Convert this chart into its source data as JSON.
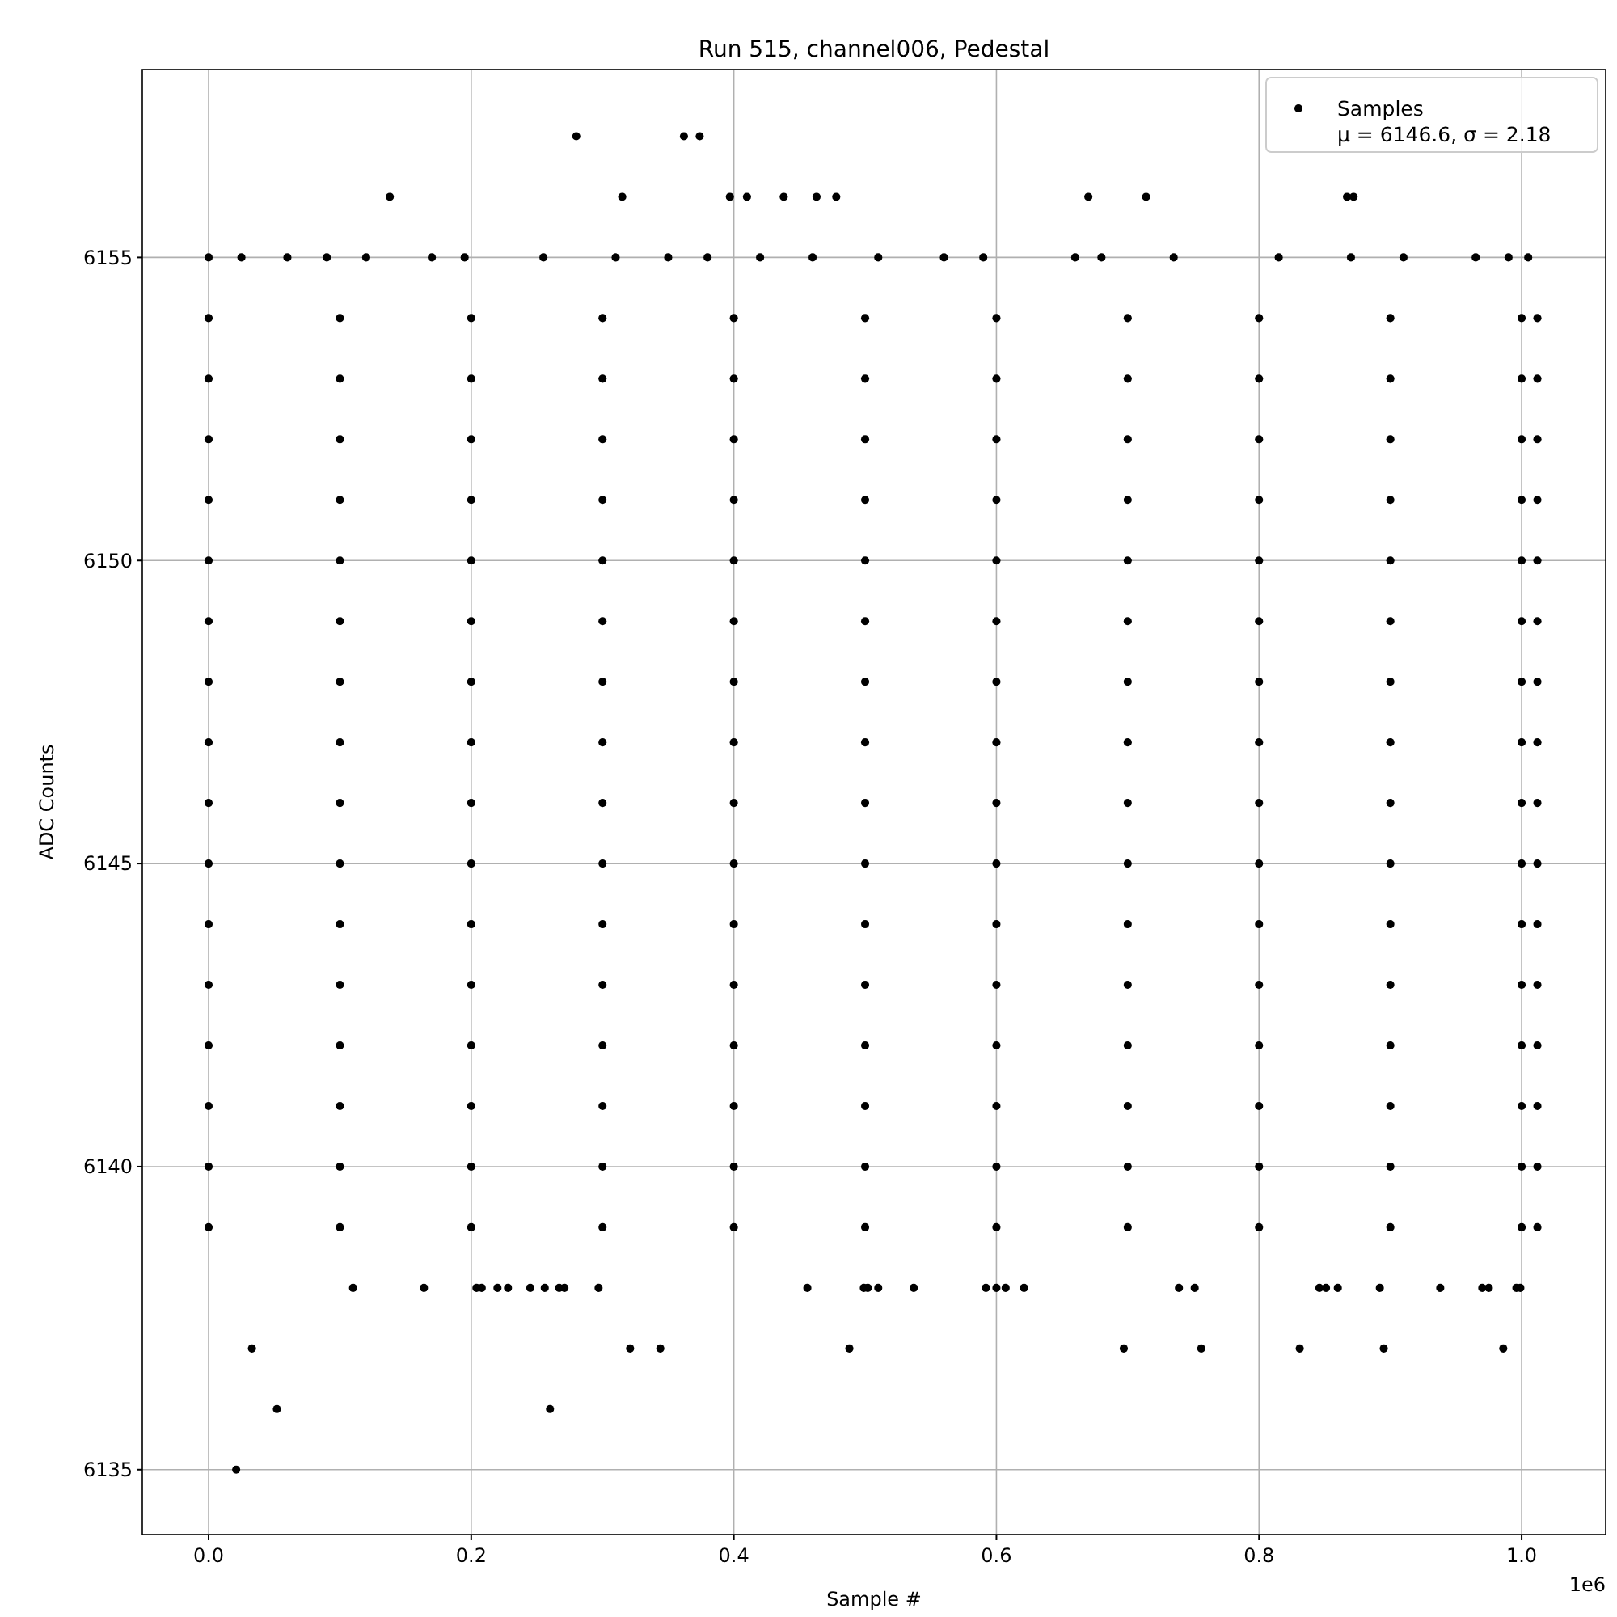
{
  "chart_data": {
    "type": "scatter",
    "title": "Run 515, channel006, Pedestal",
    "xlabel": "Sample #",
    "ylabel": "ADC Counts",
    "annotations": [
      "1e6"
    ],
    "xlim": [
      -0.0505,
      1.064
    ],
    "ylim": [
      6133.93,
      6158.1
    ],
    "xticks": [
      {
        "value": 0,
        "label": "0.0"
      },
      0.2,
      0.4,
      0.6,
      0.8,
      {
        "value": 1,
        "label": "1.0"
      }
    ],
    "yticks": [
      6135,
      6140,
      6145,
      6150,
      6155
    ],
    "grid": true,
    "legend": "top right",
    "marker": "circle",
    "series": [
      {
        "name": "Samples\nμ = 6146.6, σ = 2.18",
        "color": "#000000",
        "x": [
          0.28,
          0.362,
          0.374,
          0.138,
          0.315,
          0.397,
          0.41,
          0.438,
          0.463,
          0.478,
          0.67,
          0.714,
          0.867,
          0.872,
          0.11,
          0.164,
          0.204,
          0.208,
          0.22,
          0.228,
          0.245,
          0.256,
          0.267,
          0.271,
          0.297,
          0.456,
          0.499,
          0.502,
          0.51,
          0.537,
          0.592,
          0.6,
          0.607,
          0.621,
          0.739,
          0.751,
          0.846,
          0.851,
          0.86,
          0.892,
          0.938,
          0.97,
          0.975,
          0.996,
          0.999,
          0.033,
          0.321,
          0.344,
          0.488,
          0.697,
          0.756,
          0.831,
          0.895,
          0.986,
          0.052,
          0.26,
          0.021
        ],
        "values": [
          6157,
          6157,
          6157,
          6156,
          6156,
          6156,
          6156,
          6156,
          6156,
          6156,
          6156,
          6156,
          6156,
          6156,
          6138,
          6138,
          6138,
          6138,
          6138,
          6138,
          6138,
          6138,
          6138,
          6138,
          6138,
          6138,
          6138,
          6138,
          6138,
          6138,
          6138,
          6138,
          6138,
          6138,
          6138,
          6138,
          6138,
          6138,
          6138,
          6138,
          6138,
          6138,
          6138,
          6138,
          6138,
          6137,
          6137,
          6137,
          6137,
          6137,
          6137,
          6137,
          6137,
          6137,
          6136,
          6136,
          6135
        ]
      },
      {
        "color": "#000000",
        "x": [
          0,
          0.025,
          0.06,
          0.09,
          0.12,
          0.17,
          0.195,
          0.255,
          0.31,
          0.35,
          0.38,
          0.42,
          0.46,
          0.51,
          0.56,
          0.59,
          0.66,
          0.68,
          0.735,
          0.815,
          0.87,
          0.91,
          0.965,
          0.99,
          1.005
        ],
        "values": [
          6155,
          6155,
          6155,
          6155,
          6155,
          6155,
          6155,
          6155,
          6155,
          6155,
          6155,
          6155,
          6155,
          6155,
          6155,
          6155,
          6155,
          6155,
          6155,
          6155,
          6155,
          6155,
          6155,
          6155,
          6155
        ]
      },
      {
        "color": "#000000",
        "x": [
          0,
          0.1,
          0.2,
          0.3,
          0.4,
          0.5,
          0.6,
          0.7,
          0.8,
          0.9,
          1.0,
          1.012
        ],
        "values": [
          6154,
          6154,
          6154,
          6154,
          6154,
          6154,
          6154,
          6154,
          6154,
          6154,
          6154,
          6154
        ]
      },
      {
        "color": "#000000",
        "x": [
          0,
          0.1,
          0.2,
          0.3,
          0.4,
          0.5,
          0.6,
          0.7,
          0.8,
          0.9,
          1.0,
          1.012
        ],
        "values": [
          6153,
          6153,
          6153,
          6153,
          6153,
          6153,
          6153,
          6153,
          6153,
          6153,
          6153,
          6153
        ]
      },
      {
        "color": "#000000",
        "x": [
          0,
          0.1,
          0.2,
          0.3,
          0.4,
          0.5,
          0.6,
          0.7,
          0.8,
          0.9,
          1.0,
          1.012
        ],
        "values": [
          6152,
          6152,
          6152,
          6152,
          6152,
          6152,
          6152,
          6152,
          6152,
          6152,
          6152,
          6152
        ]
      },
      {
        "color": "#000000",
        "x": [
          0,
          0.1,
          0.2,
          0.3,
          0.4,
          0.5,
          0.6,
          0.7,
          0.8,
          0.9,
          1.0,
          1.012
        ],
        "values": [
          6151,
          6151,
          6151,
          6151,
          6151,
          6151,
          6151,
          6151,
          6151,
          6151,
          6151,
          6151
        ]
      },
      {
        "color": "#000000",
        "x": [
          0,
          0.1,
          0.2,
          0.3,
          0.4,
          0.5,
          0.6,
          0.7,
          0.8,
          0.9,
          1.0,
          1.012
        ],
        "values": [
          6150,
          6150,
          6150,
          6150,
          6150,
          6150,
          6150,
          6150,
          6150,
          6150,
          6150,
          6150
        ]
      },
      {
        "color": "#000000",
        "x": [
          0,
          0.1,
          0.2,
          0.3,
          0.4,
          0.5,
          0.6,
          0.7,
          0.8,
          0.9,
          1.0,
          1.012
        ],
        "values": [
          6149,
          6149,
          6149,
          6149,
          6149,
          6149,
          6149,
          6149,
          6149,
          6149,
          6149,
          6149
        ]
      },
      {
        "color": "#000000",
        "x": [
          0,
          0.1,
          0.2,
          0.3,
          0.4,
          0.5,
          0.6,
          0.7,
          0.8,
          0.9,
          1.0,
          1.012
        ],
        "values": [
          6148,
          6148,
          6148,
          6148,
          6148,
          6148,
          6148,
          6148,
          6148,
          6148,
          6148,
          6148
        ]
      },
      {
        "color": "#000000",
        "x": [
          0,
          0.1,
          0.2,
          0.3,
          0.4,
          0.5,
          0.6,
          0.7,
          0.8,
          0.9,
          1.0,
          1.012
        ],
        "values": [
          6147,
          6147,
          6147,
          6147,
          6147,
          6147,
          6147,
          6147,
          6147,
          6147,
          6147,
          6147
        ]
      },
      {
        "color": "#000000",
        "x": [
          0,
          0.1,
          0.2,
          0.3,
          0.4,
          0.5,
          0.6,
          0.7,
          0.8,
          0.9,
          1.0,
          1.012
        ],
        "values": [
          6146,
          6146,
          6146,
          6146,
          6146,
          6146,
          6146,
          6146,
          6146,
          6146,
          6146,
          6146
        ]
      },
      {
        "color": "#000000",
        "x": [
          0,
          0.1,
          0.2,
          0.3,
          0.4,
          0.5,
          0.6,
          0.7,
          0.8,
          0.9,
          1.0,
          1.012
        ],
        "values": [
          6145,
          6145,
          6145,
          6145,
          6145,
          6145,
          6145,
          6145,
          6145,
          6145,
          6145,
          6145
        ]
      },
      {
        "color": "#000000",
        "x": [
          0,
          0.1,
          0.2,
          0.3,
          0.4,
          0.5,
          0.6,
          0.7,
          0.8,
          0.9,
          1.0,
          1.012
        ],
        "values": [
          6144,
          6144,
          6144,
          6144,
          6144,
          6144,
          6144,
          6144,
          6144,
          6144,
          6144,
          6144
        ]
      },
      {
        "color": "#000000",
        "x": [
          0,
          0.1,
          0.2,
          0.3,
          0.4,
          0.5,
          0.6,
          0.7,
          0.8,
          0.9,
          1.0,
          1.012
        ],
        "values": [
          6143,
          6143,
          6143,
          6143,
          6143,
          6143,
          6143,
          6143,
          6143,
          6143,
          6143,
          6143
        ]
      },
      {
        "color": "#000000",
        "x": [
          0,
          0.1,
          0.2,
          0.3,
          0.4,
          0.5,
          0.6,
          0.7,
          0.8,
          0.9,
          1.0,
          1.012
        ],
        "values": [
          6142,
          6142,
          6142,
          6142,
          6142,
          6142,
          6142,
          6142,
          6142,
          6142,
          6142,
          6142
        ]
      },
      {
        "color": "#000000",
        "x": [
          0,
          0.1,
          0.2,
          0.3,
          0.4,
          0.5,
          0.6,
          0.7,
          0.8,
          0.9,
          1.0,
          1.012
        ],
        "values": [
          6141,
          6141,
          6141,
          6141,
          6141,
          6141,
          6141,
          6141,
          6141,
          6141,
          6141,
          6141
        ]
      },
      {
        "color": "#000000",
        "x": [
          0,
          0.1,
          0.2,
          0.3,
          0.4,
          0.5,
          0.6,
          0.7,
          0.8,
          0.9,
          1.0,
          1.012
        ],
        "values": [
          6140,
          6140,
          6140,
          6140,
          6140,
          6140,
          6140,
          6140,
          6140,
          6140,
          6140,
          6140
        ]
      },
      {
        "color": "#000000",
        "x": [
          0,
          0.1,
          0.2,
          0.3,
          0.4,
          0.5,
          0.6,
          0.7,
          0.8,
          0.9,
          1.0,
          1.012
        ],
        "values": [
          6139,
          6139,
          6139,
          6139,
          6139,
          6139,
          6139,
          6139,
          6139,
          6139,
          6139,
          6139
        ]
      }
    ]
  }
}
